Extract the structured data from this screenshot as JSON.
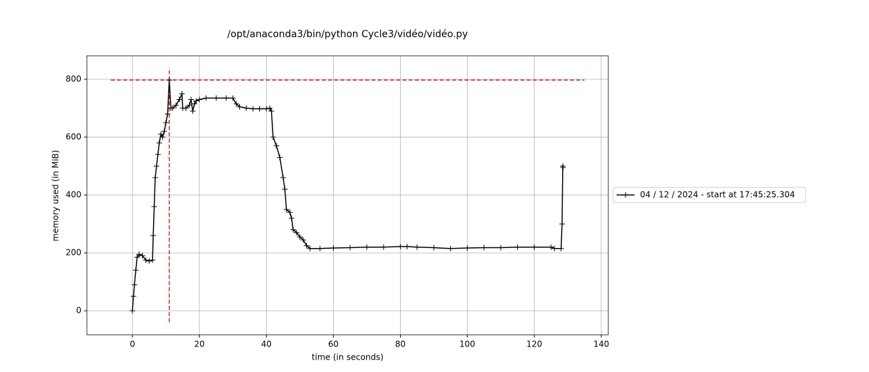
{
  "chart_data": {
    "type": "line",
    "title": "/opt/anaconda3/bin/python Cycle3/vidéo/vidéo.py",
    "x_label": "time (in seconds)",
    "y_label": "memory used (in MiB)",
    "x": [
      0,
      0.3,
      0.6,
      1,
      1.4,
      2,
      3,
      4,
      5,
      6,
      6.2,
      6.5,
      6.8,
      7.2,
      7.6,
      8,
      8.5,
      9,
      9.5,
      10,
      10.5,
      11,
      11.5,
      12,
      13,
      14,
      14.8,
      15,
      16,
      17,
      17.5,
      18,
      18.5,
      19,
      20,
      22,
      25,
      28,
      30,
      31,
      32,
      34,
      36,
      38,
      40,
      41,
      41.5,
      42,
      43,
      44,
      45,
      45.5,
      46,
      47,
      47.5,
      48,
      49,
      50,
      51,
      52,
      53,
      56,
      60,
      65,
      70,
      75,
      80,
      82,
      85,
      90,
      95,
      100,
      105,
      110,
      115,
      120,
      125,
      126,
      128,
      128.3,
      128.5,
      128.6
    ],
    "series": [
      {
        "name": "04 / 12 / 2024 - start at 17:45:25.304",
        "color": "#000000",
        "values": [
          0,
          50,
          90,
          140,
          185,
          195,
          190,
          175,
          172,
          175,
          260,
          360,
          460,
          500,
          540,
          580,
          610,
          600,
          620,
          650,
          680,
          797,
          700,
          700,
          710,
          730,
          750,
          700,
          700,
          710,
          730,
          690,
          715,
          725,
          730,
          735,
          735,
          735,
          735,
          715,
          705,
          700,
          698,
          698,
          698,
          700,
          690,
          600,
          570,
          530,
          460,
          420,
          350,
          340,
          320,
          280,
          270,
          255,
          245,
          225,
          215,
          215,
          217,
          218,
          220,
          220,
          222,
          222,
          220,
          218,
          215,
          217,
          218,
          218,
          220,
          220,
          220,
          215,
          215,
          300,
          500,
          495
        ]
      }
    ],
    "max_lines": {
      "color": "#d62728",
      "y": 797,
      "xmin": -6.5,
      "xmax": 135,
      "x": 11,
      "ymin": -40,
      "ymax": 840
    },
    "xlim": [
      -13.6,
      142.1
    ],
    "ylim": [
      -83,
      881
    ],
    "xticks": [
      0,
      20,
      40,
      60,
      80,
      100,
      120,
      140
    ],
    "yticks": [
      0,
      200,
      400,
      600,
      800
    ],
    "grid": true,
    "legend": "outside right"
  }
}
